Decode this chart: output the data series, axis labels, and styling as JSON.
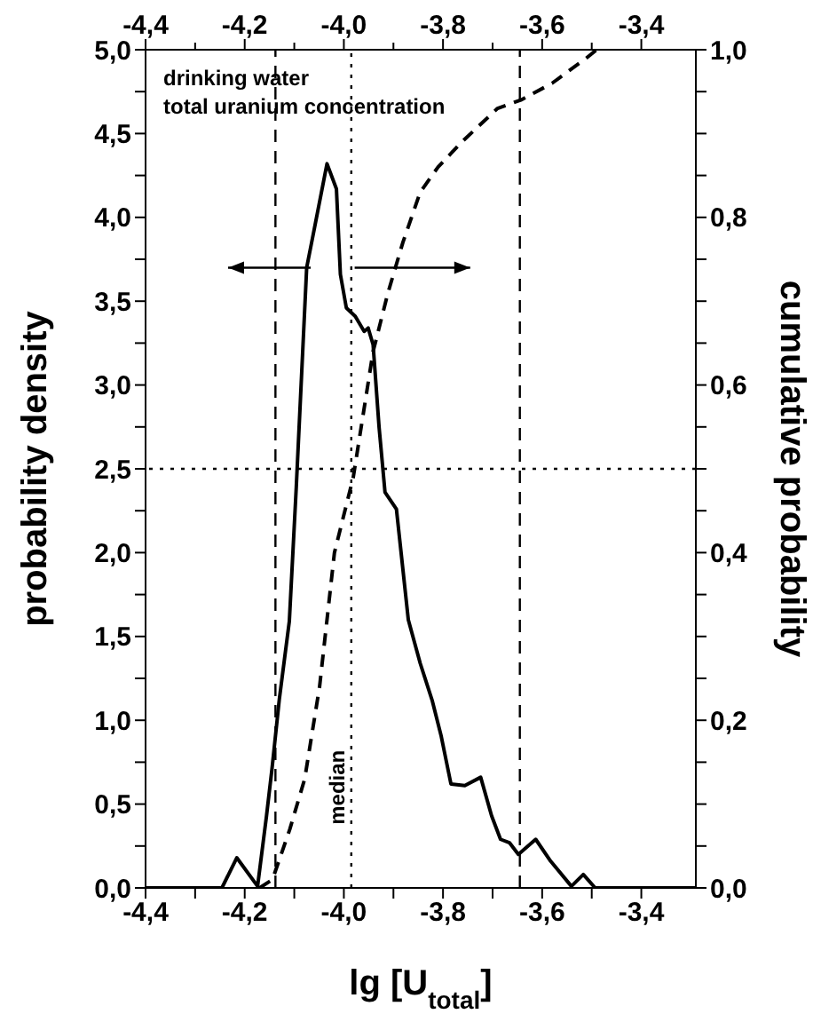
{
  "chart_data": {
    "type": "line",
    "xlabel": "lg [U$_{total}$]",
    "ylabel": "probability density",
    "y2label": "cumulative probability",
    "annotations": [
      "drinking water",
      "total uranium concentration",
      {
        "text": "median",
        "x": -3.985,
        "y": 0.6
      }
    ],
    "xlim": [
      -4.4,
      -3.29
    ],
    "x2lim": [
      -4.4,
      -3.29
    ],
    "xticks": [
      {
        "value": -4.4,
        "label": "-4,4"
      },
      {
        "value": -4.3,
        "label": null
      },
      {
        "value": -4.2,
        "label": "-4,2"
      },
      {
        "value": -4.1,
        "label": null
      },
      {
        "value": -4.0,
        "label": "-4,0"
      },
      {
        "value": -3.9,
        "label": null
      },
      {
        "value": -3.8,
        "label": "-3,8"
      },
      {
        "value": -3.7,
        "label": null
      },
      {
        "value": -3.6,
        "label": "-3,6"
      },
      {
        "value": -3.5,
        "label": null
      },
      {
        "value": -3.4,
        "label": "-3,4"
      }
    ],
    "x2ticks": [
      {
        "value": -4.4,
        "label": "-4,4"
      },
      {
        "value": -4.3,
        "label": null
      },
      {
        "value": -4.2,
        "label": "-4,2"
      },
      {
        "value": -4.1,
        "label": null
      },
      {
        "value": -4.0,
        "label": "-4,0"
      },
      {
        "value": -3.9,
        "label": null
      },
      {
        "value": -3.8,
        "label": "-3,8"
      },
      {
        "value": -3.7,
        "label": null
      },
      {
        "value": -3.6,
        "label": "-3,6"
      },
      {
        "value": -3.5,
        "label": null
      },
      {
        "value": -3.4,
        "label": "-3,4"
      }
    ],
    "ylim": [
      0,
      5
    ],
    "yticks": [
      {
        "value": 0,
        "label": "0,0"
      },
      {
        "value": 0.25,
        "label": null
      },
      {
        "value": 0.5,
        "label": "0,5"
      },
      {
        "value": 0.75,
        "label": null
      },
      {
        "value": 1,
        "label": "1,0"
      },
      {
        "value": 1.25,
        "label": null
      },
      {
        "value": 1.5,
        "label": "1,5"
      },
      {
        "value": 1.75,
        "label": null
      },
      {
        "value": 2,
        "label": "2,0"
      },
      {
        "value": 2.25,
        "label": null
      },
      {
        "value": 2.5,
        "label": "2,5"
      },
      {
        "value": 2.75,
        "label": null
      },
      {
        "value": 3,
        "label": "3,0"
      },
      {
        "value": 3.25,
        "label": null
      },
      {
        "value": 3.5,
        "label": "3,5"
      },
      {
        "value": 3.75,
        "label": null
      },
      {
        "value": 4,
        "label": "4,0"
      },
      {
        "value": 4.25,
        "label": null
      },
      {
        "value": 4.5,
        "label": "4,5"
      },
      {
        "value": 4.75,
        "label": null
      },
      {
        "value": 5,
        "label": "5,0"
      }
    ],
    "y2lim": [
      0,
      1
    ],
    "y2ticks": [
      {
        "value": 0,
        "label": "0,0"
      },
      {
        "value": 0.05,
        "label": null
      },
      {
        "value": 0.1,
        "label": null
      },
      {
        "value": 0.15,
        "label": null
      },
      {
        "value": 0.2,
        "label": "0,2"
      },
      {
        "value": 0.25,
        "label": null
      },
      {
        "value": 0.3,
        "label": null
      },
      {
        "value": 0.35,
        "label": null
      },
      {
        "value": 0.4,
        "label": "0,4"
      },
      {
        "value": 0.45,
        "label": null
      },
      {
        "value": 0.5,
        "label": null
      },
      {
        "value": 0.55,
        "label": null
      },
      {
        "value": 0.6,
        "label": "0,6"
      },
      {
        "value": 0.65,
        "label": null
      },
      {
        "value": 0.7,
        "label": null
      },
      {
        "value": 0.75,
        "label": null
      },
      {
        "value": 0.8,
        "label": "0,8"
      },
      {
        "value": 0.85,
        "label": null
      },
      {
        "value": 0.9,
        "label": null
      },
      {
        "value": 0.95,
        "label": null
      },
      {
        "value": 1,
        "label": "1,0"
      }
    ],
    "marker": "none",
    "series": [
      {
        "color": "#000000",
        "line_style": "solid",
        "x": [
          -4.4,
          -4.246,
          -4.216,
          -4.174,
          -4.156,
          -4.145,
          -4.13,
          -4.11,
          -4.096,
          -4.075,
          -4.063,
          -4.034,
          -4.015,
          -4.007,
          -3.995,
          -3.977,
          -3.959,
          -3.951,
          -3.941,
          -3.929,
          -3.917,
          -3.894,
          -3.87,
          -3.846,
          -3.822,
          -3.804,
          -3.784,
          -3.756,
          -3.724,
          -3.702,
          -3.684,
          -3.666,
          -3.648,
          -3.613,
          -3.583,
          -3.541,
          -3.517,
          -3.493,
          -3.29
        ],
        "values": [
          0,
          0,
          0.18,
          0.01,
          0.43,
          0.71,
          1.13,
          1.59,
          2.39,
          3.7,
          3.88,
          4.32,
          4.17,
          3.66,
          3.46,
          3.41,
          3.32,
          3.34,
          3.24,
          2.75,
          2.36,
          2.26,
          1.6,
          1.34,
          1.12,
          0.91,
          0.62,
          0.61,
          0.66,
          0.43,
          0.29,
          0.27,
          0.2,
          0.29,
          0.16,
          0.01,
          0.08,
          0,
          0
        ]
      },
      {
        "color": "#000000",
        "line_style": "dashed",
        "axis": "y2",
        "x": [
          -4.17,
          -4.144,
          -4.109,
          -4.079,
          -4.049,
          -4.019,
          -3.981,
          -3.941,
          -3.911,
          -3.881,
          -3.846,
          -3.81,
          -3.762,
          -3.69,
          -3.643,
          -3.58,
          -3.511,
          -3.49
        ],
        "values": [
          0,
          0.01,
          0.07,
          0.13,
          0.24,
          0.4,
          0.49,
          0.64,
          0.71,
          0.77,
          0.83,
          0.86,
          0.89,
          0.93,
          0.94,
          0.96,
          0.99,
          1
        ]
      }
    ],
    "ref_lines": [
      {
        "axis": "x",
        "value": -3.985,
        "line_style": "dotted"
      },
      {
        "axis": "x",
        "value": -4.138,
        "line_style": "dashed"
      },
      {
        "axis": "x",
        "value": -3.645,
        "line_style": "dashed"
      },
      {
        "axis": "y2",
        "value": 0.5,
        "line_style": "dotted"
      }
    ]
  }
}
